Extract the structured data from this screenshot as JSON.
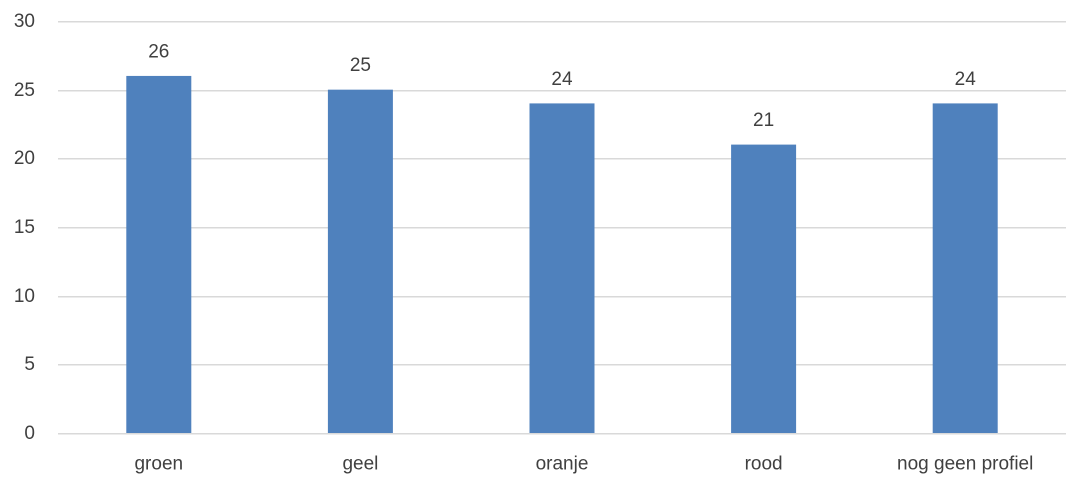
{
  "chart_data": {
    "type": "bar",
    "categories": [
      "groen",
      "geel",
      "oranje",
      "rood",
      "nog geen profiel"
    ],
    "values": [
      26,
      25,
      24,
      21,
      24
    ],
    "data_labels": [
      "26",
      "25",
      "24",
      "21",
      "24"
    ],
    "ylim": [
      0,
      30
    ],
    "yticks": [
      0,
      5,
      10,
      15,
      20,
      25,
      30
    ],
    "ytick_labels": [
      "0",
      "5",
      "10",
      "15",
      "20",
      "25",
      "30"
    ],
    "grid": true,
    "legend": "none",
    "bar_color": "#4f81bd",
    "grid_color": "#d9d9d9",
    "text_color": "#404040"
  }
}
